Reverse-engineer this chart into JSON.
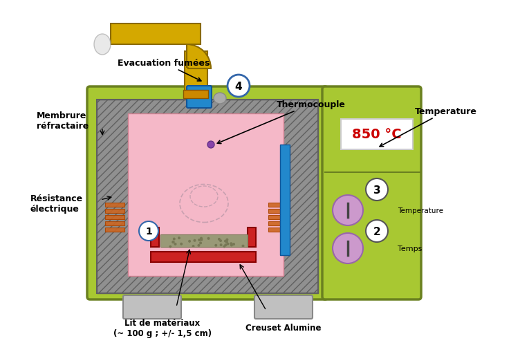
{
  "bg_color": "#ffffff",
  "furnace_color": "#a8c832",
  "furnace_border": "#6a8020",
  "refractory_color": "#888888",
  "chamber_color": "#f5b8c8",
  "temp_display_color": "#ffffff",
  "temp_text": "850 °C",
  "temp_text_color": "#cc0000",
  "pipe_color": "#d4a800",
  "pipe_color2": "#e8c000",
  "sensor_color1": "#2288cc",
  "sensor_color2": "#aa8800",
  "thermocouple_color": "#2288cc",
  "knob_color": "#cc99cc",
  "knob_border": "#9966aa",
  "heating_color": "#cc6622",
  "creuset_color": "#cc2222",
  "sediment_color": "#999977",
  "label_1": "1",
  "label_2": "2",
  "label_3": "3",
  "label_4": "4",
  "text_evacuation": "Evacuation fumées",
  "text_membrure": "Membrure\nréfractaire",
  "text_thermocouple": "Thermocouple",
  "text_temperature": "Temperature",
  "text_resistance": "Résistance\nélectrique",
  "text_lit": "Lit de matériaux\n(~ 100 g ; +/- 1,5 cm)",
  "text_creuset": "Creuset Alumine",
  "text_temps": "Temps",
  "text_temperature_knob": "Temperature"
}
